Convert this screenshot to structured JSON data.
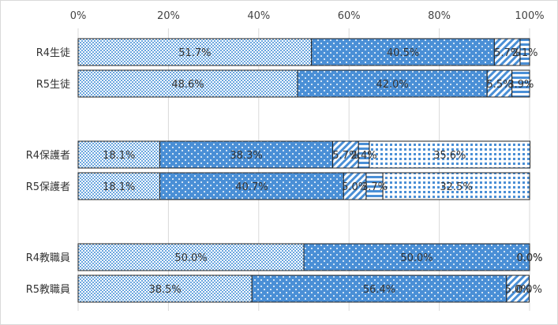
{
  "chart_data": {
    "type": "bar",
    "orientation": "horizontal",
    "stacked": "percent",
    "title": "",
    "xlabel": "",
    "ylabel": "",
    "xlim": [
      0,
      100
    ],
    "x_ticks": [
      "0%",
      "20%",
      "40%",
      "60%",
      "80%",
      "100%"
    ],
    "grid": true,
    "legend": "none",
    "rows": [
      {
        "label": "R4生徒",
        "segments": [
          51.7,
          40.5,
          5.7,
          2.1
        ]
      },
      {
        "label": "R5生徒",
        "segments": [
          48.6,
          42.0,
          5.5,
          3.9
        ]
      },
      {
        "label": "R4保護者",
        "segments": [
          18.1,
          38.3,
          5.7,
          2.4,
          35.6
        ]
      },
      {
        "label": "R5保護者",
        "segments": [
          18.1,
          40.7,
          5.0,
          3.7,
          32.5
        ]
      },
      {
        "label": "R4教職員",
        "segments": [
          50.0,
          50.0,
          0.0,
          0.0
        ]
      },
      {
        "label": "R5教職員",
        "segments": [
          38.5,
          56.4,
          5.0,
          0.0
        ]
      }
    ],
    "segment_styles": [
      {
        "pattern": "fine-dots",
        "color": "#6aa6df"
      },
      {
        "pattern": "sparse-dots",
        "color": "#4a8fd6"
      },
      {
        "pattern": "diagonal-stripes",
        "color": "#4a8fd6"
      },
      {
        "pattern": "horizontal-stripes",
        "color": "#4a8fd6"
      },
      {
        "pattern": "square-dots",
        "color": "#4a8fd6"
      }
    ]
  }
}
